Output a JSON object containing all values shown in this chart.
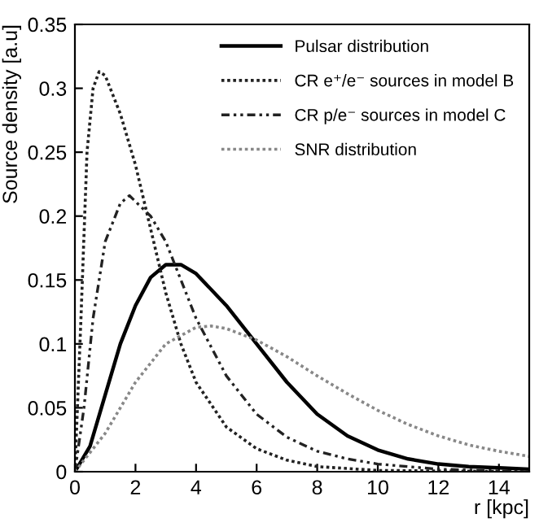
{
  "chart_data": {
    "type": "line",
    "xlabel": "r [kpc]",
    "ylabel": "Source density [a.u]",
    "xlim": [
      0,
      15
    ],
    "xticks": [
      0,
      2,
      4,
      6,
      8,
      10,
      12,
      14
    ],
    "ylim": [
      0,
      0.35
    ],
    "yticks": [
      0,
      0.05,
      0.1,
      0.15,
      0.2,
      0.25,
      0.3,
      0.35
    ],
    "grid": false,
    "legend": "top right",
    "marker": "none",
    "series": [
      {
        "name": "Pulsar distribution",
        "color": "#000000",
        "line_style": "solid",
        "x": [
          0,
          0.5,
          1,
          1.5,
          2,
          2.5,
          3,
          3.5,
          4,
          5,
          6,
          7,
          8,
          9,
          10,
          11,
          12,
          13,
          14,
          15
        ],
        "values": [
          0,
          0.02,
          0.06,
          0.1,
          0.13,
          0.152,
          0.162,
          0.162,
          0.155,
          0.13,
          0.1,
          0.07,
          0.045,
          0.028,
          0.017,
          0.01,
          0.006,
          0.004,
          0.003,
          0.002
        ]
      },
      {
        "name": "CR e⁺/e⁻ sources in model B",
        "color": "#222222",
        "line_style": "dotted",
        "x": [
          0,
          0.2,
          0.4,
          0.6,
          0.8,
          1,
          1.5,
          2,
          2.5,
          3,
          3.5,
          4,
          5,
          6,
          7,
          8,
          10,
          15
        ],
        "values": [
          0,
          0.12,
          0.25,
          0.3,
          0.313,
          0.31,
          0.28,
          0.24,
          0.19,
          0.14,
          0.1,
          0.07,
          0.035,
          0.018,
          0.009,
          0.004,
          0.001,
          0
        ]
      },
      {
        "name": "CR p/e⁻ sources in model C",
        "color": "#222222",
        "line_style": "dashdotdot",
        "x": [
          0,
          0.3,
          0.6,
          1,
          1.5,
          1.8,
          2.5,
          3,
          3.5,
          4,
          5,
          6,
          7,
          8,
          9,
          10,
          12,
          15
        ],
        "values": [
          0,
          0.05,
          0.12,
          0.18,
          0.21,
          0.216,
          0.2,
          0.18,
          0.15,
          0.12,
          0.075,
          0.045,
          0.027,
          0.016,
          0.01,
          0.006,
          0.002,
          0
        ]
      },
      {
        "name": "SNR distribution",
        "color": "#888888",
        "line_style": "dotted",
        "x": [
          0,
          1,
          2,
          3,
          4,
          4.5,
          5,
          6,
          7,
          8,
          9,
          10,
          11,
          12,
          13,
          14,
          15
        ],
        "values": [
          0,
          0.03,
          0.07,
          0.1,
          0.113,
          0.114,
          0.112,
          0.103,
          0.09,
          0.075,
          0.061,
          0.048,
          0.037,
          0.028,
          0.021,
          0.016,
          0.012
        ]
      }
    ]
  }
}
